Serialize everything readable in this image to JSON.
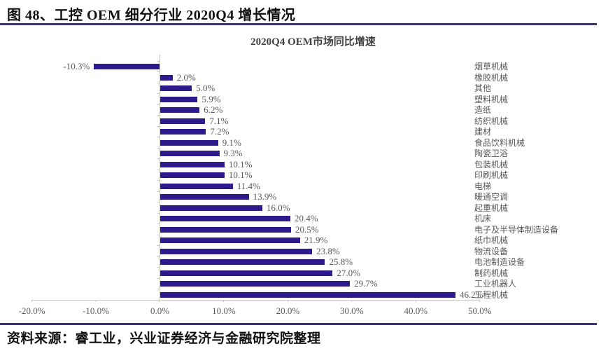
{
  "header": {
    "title": "图 48、工控 OEM 细分行业 2020Q4 增长情况"
  },
  "chart_data": {
    "type": "bar",
    "orientation": "horizontal",
    "title": "2020Q4 OEM市场同比增速",
    "categories": [
      "烟草机械",
      "橡胶机械",
      "其他",
      "塑料机械",
      "造纸",
      "纺织机械",
      "建材",
      "食品饮料机械",
      "陶瓷卫浴",
      "包装机械",
      "印刷机械",
      "电梯",
      "暖通空调",
      "起重机械",
      "机床",
      "电子及半导体制造设备",
      "纸巾机械",
      "物流设备",
      "电池制造设备",
      "制药机械",
      "工业机器人",
      "工程机械"
    ],
    "values": [
      -10.3,
      2.0,
      5.0,
      5.9,
      6.2,
      7.1,
      7.2,
      9.1,
      9.3,
      10.1,
      10.1,
      11.4,
      13.9,
      16.0,
      20.4,
      20.5,
      21.9,
      23.8,
      25.8,
      27.0,
      29.7,
      46.2
    ],
    "value_labels": [
      "-10.3%",
      "2.0%",
      "5.0%",
      "5.9%",
      "6.2%",
      "7.1%",
      "7.2%",
      "9.1%",
      "9.3%",
      "10.1%",
      "10.1%",
      "11.4%",
      "13.9%",
      "16.0%",
      "20.4%",
      "20.5%",
      "21.9%",
      "23.8%",
      "25.8%",
      "27.0%",
      "29.7%",
      "46.2%"
    ],
    "x_tick_labels": [
      "-20.0%",
      "-10.0%",
      "0.0%",
      "10.0%",
      "20.0%",
      "30.0%",
      "40.0%",
      "50.0%"
    ],
    "xlim": [
      -20,
      50
    ],
    "grid": false,
    "legend": false,
    "bar_color": "#2e1a8c",
    "text_color": "#595959",
    "axis_color": "#c6c6c6"
  },
  "footer": {
    "source": "资料来源：睿工业，兴业证券经济与金融研究院整理"
  }
}
